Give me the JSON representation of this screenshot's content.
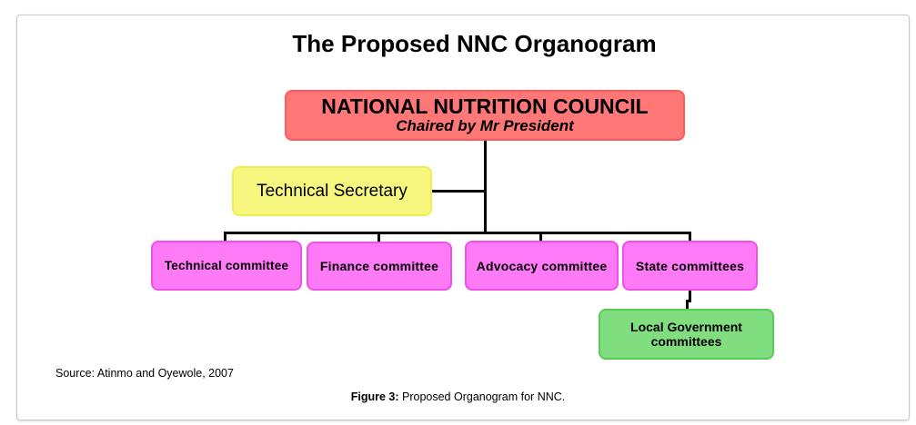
{
  "title": "The Proposed NNC Organogram",
  "council": {
    "name": "NATIONAL NUTRITION COUNCIL",
    "subtitle": "Chaired by Mr President"
  },
  "secretary": "Technical Secretary",
  "committees": [
    "Technical committee",
    "Finance committee",
    "Advocacy committee",
    "State committees"
  ],
  "local": "Local Government committees",
  "source": "Source: Atinmo and Oyewole, 2007",
  "caption": {
    "label": "Figure 3:",
    "text": " Proposed Organogram for NNC."
  },
  "colors": {
    "council": "#ff7777",
    "secretary": "#f7f780",
    "committees": "#ff7af7",
    "local": "#80dd80"
  }
}
